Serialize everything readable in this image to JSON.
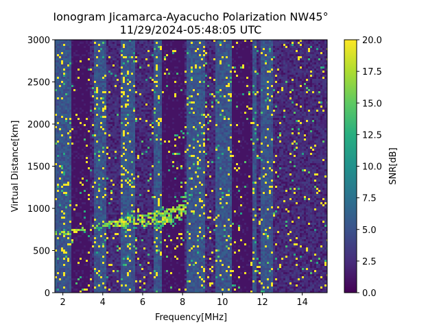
{
  "chart_data": {
    "type": "heatmap",
    "title": "Ionogram Jicamarca-Ayacucho Polarization NW45°",
    "subtitle": "11/29/2024-05:48:05 UTC",
    "xlabel": "Frequency[MHz]",
    "ylabel": "Virtual Distance[km]",
    "xlim": [
      1.6,
      15.25
    ],
    "ylim": [
      0,
      3000
    ],
    "x_ticks": [
      "2",
      "4",
      "6",
      "8",
      "10",
      "12",
      "14"
    ],
    "x_tick_values": [
      2,
      4,
      6,
      8,
      10,
      12,
      14
    ],
    "y_ticks": [
      "0",
      "500",
      "1000",
      "1500",
      "2000",
      "2500",
      "3000"
    ],
    "y_tick_values": [
      0,
      500,
      1000,
      1500,
      2000,
      2500,
      3000
    ],
    "colorbar": {
      "label": "SNR[dB]",
      "range": [
        0,
        20
      ],
      "ticks": [
        "0.0",
        "2.5",
        "5.0",
        "7.5",
        "10.0",
        "12.5",
        "15.0",
        "17.5",
        "20.0"
      ],
      "tick_values": [
        0,
        2.5,
        5,
        7.5,
        10,
        12.5,
        15,
        17.5,
        20
      ],
      "colormap": "viridis"
    },
    "trace": {
      "description_points_freq_mhz": [
        1.6,
        2.5,
        3.5,
        4.5,
        5.5,
        6.5,
        7.2,
        7.8,
        8.2
      ],
      "virtual_distance_km": [
        700,
        720,
        770,
        820,
        850,
        880,
        900,
        950,
        1050
      ]
    },
    "background_bands_mhz": {
      "noisy": [
        [
          1.6,
          2.4
        ],
        [
          3.6,
          4.2
        ],
        [
          4.9,
          5.6
        ],
        [
          6.6,
          7.0
        ],
        [
          8.2,
          9.1
        ],
        [
          9.6,
          10.5
        ],
        [
          11.5,
          11.7
        ],
        [
          11.9,
          12.5
        ]
      ],
      "quiet": [
        [
          2.4,
          3.4
        ],
        [
          7.0,
          8.1
        ],
        [
          10.5,
          11.5
        ]
      ]
    }
  }
}
